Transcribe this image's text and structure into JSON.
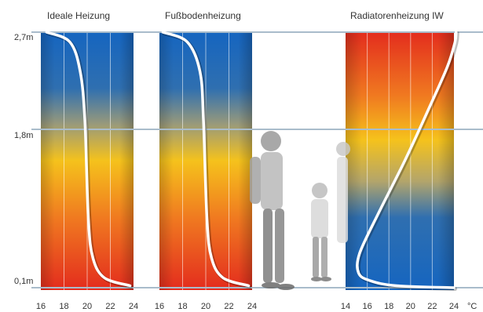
{
  "heights": [
    "2,7m",
    "1,8m",
    "0,1m"
  ],
  "unit": "°C",
  "chart_data": [
    {
      "type": "line",
      "title": "Ideale Heizung",
      "xlim": [
        16,
        24
      ],
      "xticks": [
        "16",
        "18",
        "20",
        "22",
        "24"
      ],
      "ylim": [
        0.1,
        2.7
      ],
      "ylabel_ticks": [
        "2,7m",
        "1,8m",
        "0,1m"
      ],
      "gradient": "blue-top-to-red-bottom",
      "series": [
        {
          "x": [
            16.5,
            18.5,
            19.4,
            19.8,
            20.1,
            20.5,
            21.5,
            23.7
          ],
          "y": [
            2.7,
            2.6,
            2.3,
            1.8,
            0.8,
            0.4,
            0.2,
            0.12
          ]
        }
      ]
    },
    {
      "type": "line",
      "title": "Fußbodenheizung",
      "xlim": [
        16,
        24
      ],
      "xticks": [
        "16",
        "18",
        "20",
        "22",
        "24"
      ],
      "ylim": [
        0.1,
        2.7
      ],
      "gradient": "blue-top-to-red-bottom",
      "series": [
        {
          "x": [
            16.3,
            18.4,
            19.5,
            19.8,
            20.1,
            20.5,
            21.5,
            23.7
          ],
          "y": [
            2.7,
            2.6,
            2.3,
            1.8,
            0.8,
            0.4,
            0.2,
            0.12
          ]
        }
      ]
    },
    {
      "type": "line",
      "title": "Radiatorenheizung IW",
      "xlim": [
        14,
        24
      ],
      "xticks": [
        "14",
        "16",
        "18",
        "20",
        "22",
        "24"
      ],
      "ylim": [
        0.1,
        2.7
      ],
      "gradient": "red-top-to-blue-bottom",
      "series": [
        {
          "x": [
            24.2,
            24.1,
            23.4,
            21.8,
            19.5,
            17.0,
            15.3,
            15.2,
            16.3,
            18.7,
            24.0
          ],
          "y": [
            2.7,
            2.6,
            2.35,
            1.95,
            1.4,
            0.85,
            0.45,
            0.25,
            0.17,
            0.12,
            0.1
          ]
        }
      ]
    }
  ]
}
